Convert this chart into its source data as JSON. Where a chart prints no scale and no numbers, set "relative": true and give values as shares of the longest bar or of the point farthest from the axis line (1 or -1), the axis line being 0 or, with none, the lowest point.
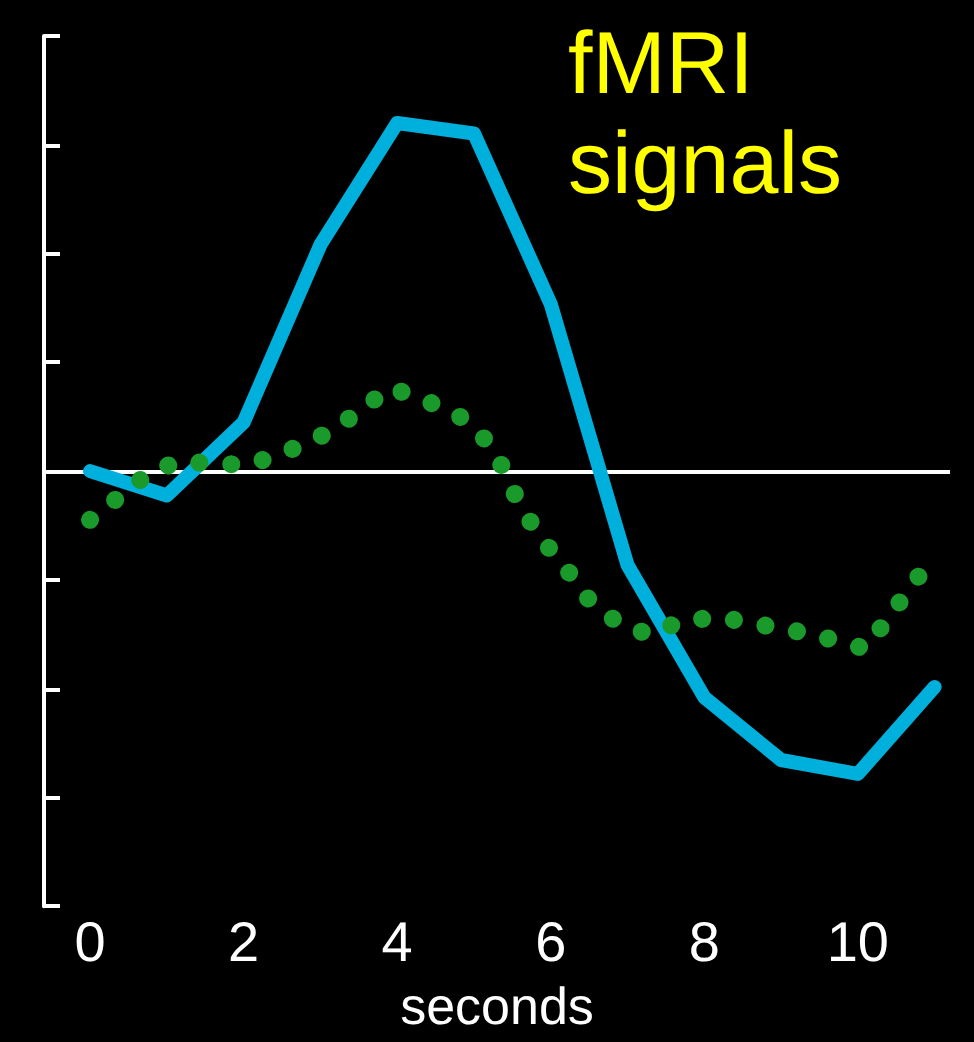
{
  "chart_data": {
    "type": "line",
    "title": "fMRI signals",
    "xlabel": "seconds",
    "relative": true,
    "xlim": [
      -0.6,
      11.2
    ],
    "xticks": [
      0,
      2,
      4,
      6,
      8,
      10
    ],
    "grid": false,
    "series": [
      {
        "color": "#00b0dc",
        "line_style": "solid",
        "x": [
          0,
          1,
          2,
          3,
          4,
          5,
          6,
          7,
          8,
          9,
          10,
          11
        ],
        "values": [
          0,
          -0.07,
          0.14,
          0.65,
          1,
          0.97,
          0.48,
          -0.27,
          -0.65,
          -0.83,
          -0.87,
          -0.62
        ]
      },
      {
        "color": "#1a9a2a",
        "line_style": "dotted",
        "x": [
          0,
          0.4,
          0.8,
          1.2,
          1.6,
          2.1,
          2.6,
          3.1,
          3.5,
          3.9,
          4.3,
          4.8,
          5.2,
          5.4,
          5.6,
          5.9,
          6.2,
          6.5,
          6.9,
          7.3,
          7.7,
          8.2,
          8.7,
          9.2,
          9.6,
          10.1,
          10.4,
          10.7,
          11.0
        ],
        "values": [
          -0.14,
          -0.07,
          0,
          0.03,
          0.02,
          0.02,
          0.06,
          0.11,
          0.17,
          0.24,
          0.21,
          0.16,
          0.08,
          0,
          -0.1,
          -0.2,
          -0.28,
          -0.37,
          -0.44,
          -0.47,
          -0.43,
          -0.42,
          -0.44,
          -0.46,
          -0.48,
          -0.51,
          -0.42,
          -0.33,
          -0.24
        ]
      }
    ]
  }
}
